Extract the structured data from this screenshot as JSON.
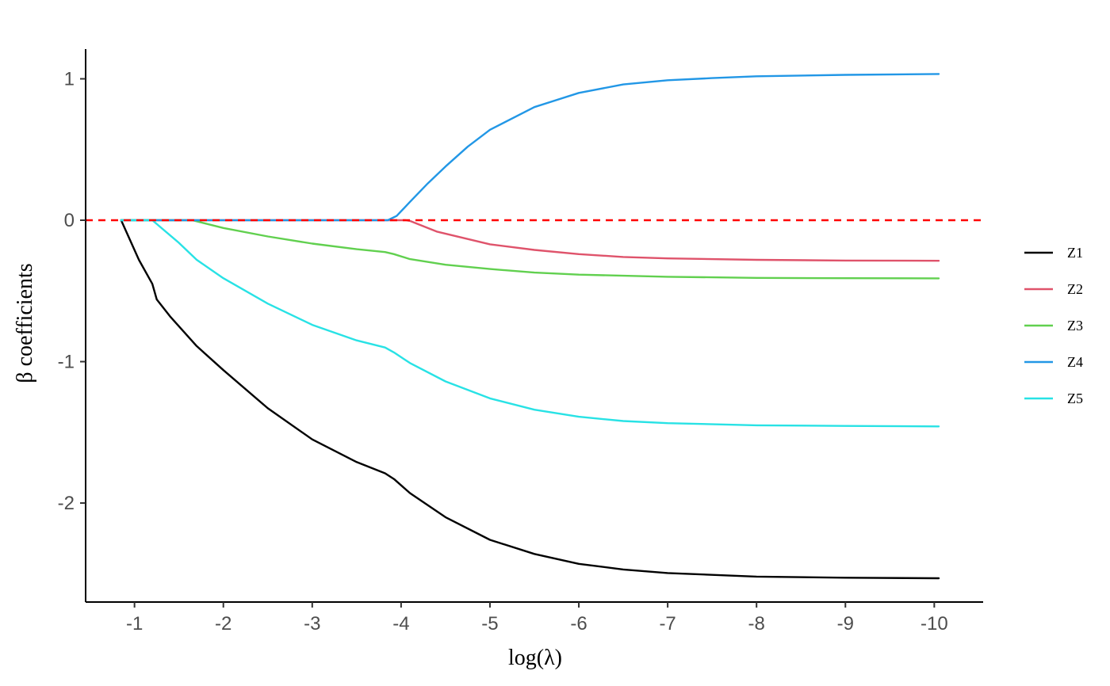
{
  "chart_data": {
    "type": "line",
    "title": "",
    "xlabel": "log(λ)",
    "ylabel": "β coefficients",
    "xlim": [
      -0.45,
      -10.55
    ],
    "ylim": [
      -2.7,
      1.21
    ],
    "x_ticks": [
      -1,
      -2,
      -3,
      -4,
      -5,
      -6,
      -7,
      -8,
      -9,
      -10
    ],
    "x_tick_labels": [
      "-1",
      "-2",
      "-3",
      "-4",
      "-5",
      "-6",
      "-7",
      "-8",
      "-9",
      "-10"
    ],
    "y_ticks": [
      1,
      0,
      -1,
      -2
    ],
    "y_tick_labels": [
      "1",
      "0",
      "-1",
      "-2"
    ],
    "grid": false,
    "legend_position": "right",
    "reference_line": {
      "y": 0,
      "style": "dashed",
      "color": "#ff0000"
    },
    "series": [
      {
        "name": "Z1",
        "color": "#000000",
        "points": [
          [
            -0.85,
            0
          ],
          [
            -0.95,
            -0.14
          ],
          [
            -1.05,
            -0.28
          ],
          [
            -1.2,
            -0.45
          ],
          [
            -1.25,
            -0.56
          ],
          [
            -1.4,
            -0.68
          ],
          [
            -1.7,
            -0.89
          ],
          [
            -2,
            -1.06
          ],
          [
            -2.5,
            -1.33
          ],
          [
            -3,
            -1.55
          ],
          [
            -3.5,
            -1.71
          ],
          [
            -3.82,
            -1.79
          ],
          [
            -3.92,
            -1.83
          ],
          [
            -4.1,
            -1.93
          ],
          [
            -4.5,
            -2.1
          ],
          [
            -5,
            -2.26
          ],
          [
            -5.5,
            -2.36
          ],
          [
            -6,
            -2.43
          ],
          [
            -6.5,
            -2.47
          ],
          [
            -7,
            -2.495
          ],
          [
            -8,
            -2.52
          ],
          [
            -9,
            -2.528
          ],
          [
            -10.05,
            -2.532
          ]
        ]
      },
      {
        "name": "Z2",
        "color": "#df536b",
        "points": [
          [
            -0.85,
            0
          ],
          [
            -4.05,
            0
          ],
          [
            -4.1,
            -0.005
          ],
          [
            -4.4,
            -0.08
          ],
          [
            -5,
            -0.17
          ],
          [
            -5.5,
            -0.21
          ],
          [
            -6,
            -0.24
          ],
          [
            -6.5,
            -0.26
          ],
          [
            -7,
            -0.27
          ],
          [
            -8,
            -0.28
          ],
          [
            -9,
            -0.285
          ],
          [
            -10.05,
            -0.287
          ]
        ]
      },
      {
        "name": "Z3",
        "color": "#61d04f",
        "points": [
          [
            -0.85,
            0
          ],
          [
            -1.65,
            0
          ],
          [
            -2,
            -0.055
          ],
          [
            -2.5,
            -0.115
          ],
          [
            -3,
            -0.165
          ],
          [
            -3.5,
            -0.205
          ],
          [
            -3.82,
            -0.225
          ],
          [
            -3.92,
            -0.24
          ],
          [
            -4.1,
            -0.275
          ],
          [
            -4.5,
            -0.315
          ],
          [
            -5,
            -0.345
          ],
          [
            -5.5,
            -0.37
          ],
          [
            -6,
            -0.385
          ],
          [
            -7,
            -0.4
          ],
          [
            -8,
            -0.408
          ],
          [
            -9,
            -0.41
          ],
          [
            -10.05,
            -0.411
          ]
        ]
      },
      {
        "name": "Z4",
        "color": "#2297e6",
        "points": [
          [
            -0.85,
            0
          ],
          [
            -3.85,
            0
          ],
          [
            -3.95,
            0.03
          ],
          [
            -4.1,
            0.13
          ],
          [
            -4.3,
            0.26
          ],
          [
            -4.5,
            0.38
          ],
          [
            -4.75,
            0.52
          ],
          [
            -5,
            0.64
          ],
          [
            -5.5,
            0.8
          ],
          [
            -6,
            0.9
          ],
          [
            -6.5,
            0.96
          ],
          [
            -7,
            0.99
          ],
          [
            -7.5,
            1.005
          ],
          [
            -8,
            1.018
          ],
          [
            -9,
            1.028
          ],
          [
            -10.05,
            1.034
          ]
        ]
      },
      {
        "name": "Z5",
        "color": "#28e2e5",
        "points": [
          [
            -0.85,
            0
          ],
          [
            -1.2,
            0
          ],
          [
            -1.5,
            -0.16
          ],
          [
            -1.7,
            -0.28
          ],
          [
            -2,
            -0.41
          ],
          [
            -2.5,
            -0.59
          ],
          [
            -3,
            -0.74
          ],
          [
            -3.5,
            -0.85
          ],
          [
            -3.82,
            -0.9
          ],
          [
            -3.92,
            -0.935
          ],
          [
            -4.1,
            -1.01
          ],
          [
            -4.5,
            -1.14
          ],
          [
            -5,
            -1.26
          ],
          [
            -5.5,
            -1.34
          ],
          [
            -6,
            -1.39
          ],
          [
            -6.5,
            -1.42
          ],
          [
            -7,
            -1.435
          ],
          [
            -8,
            -1.45
          ],
          [
            -9,
            -1.455
          ],
          [
            -10.05,
            -1.458
          ]
        ]
      }
    ]
  }
}
